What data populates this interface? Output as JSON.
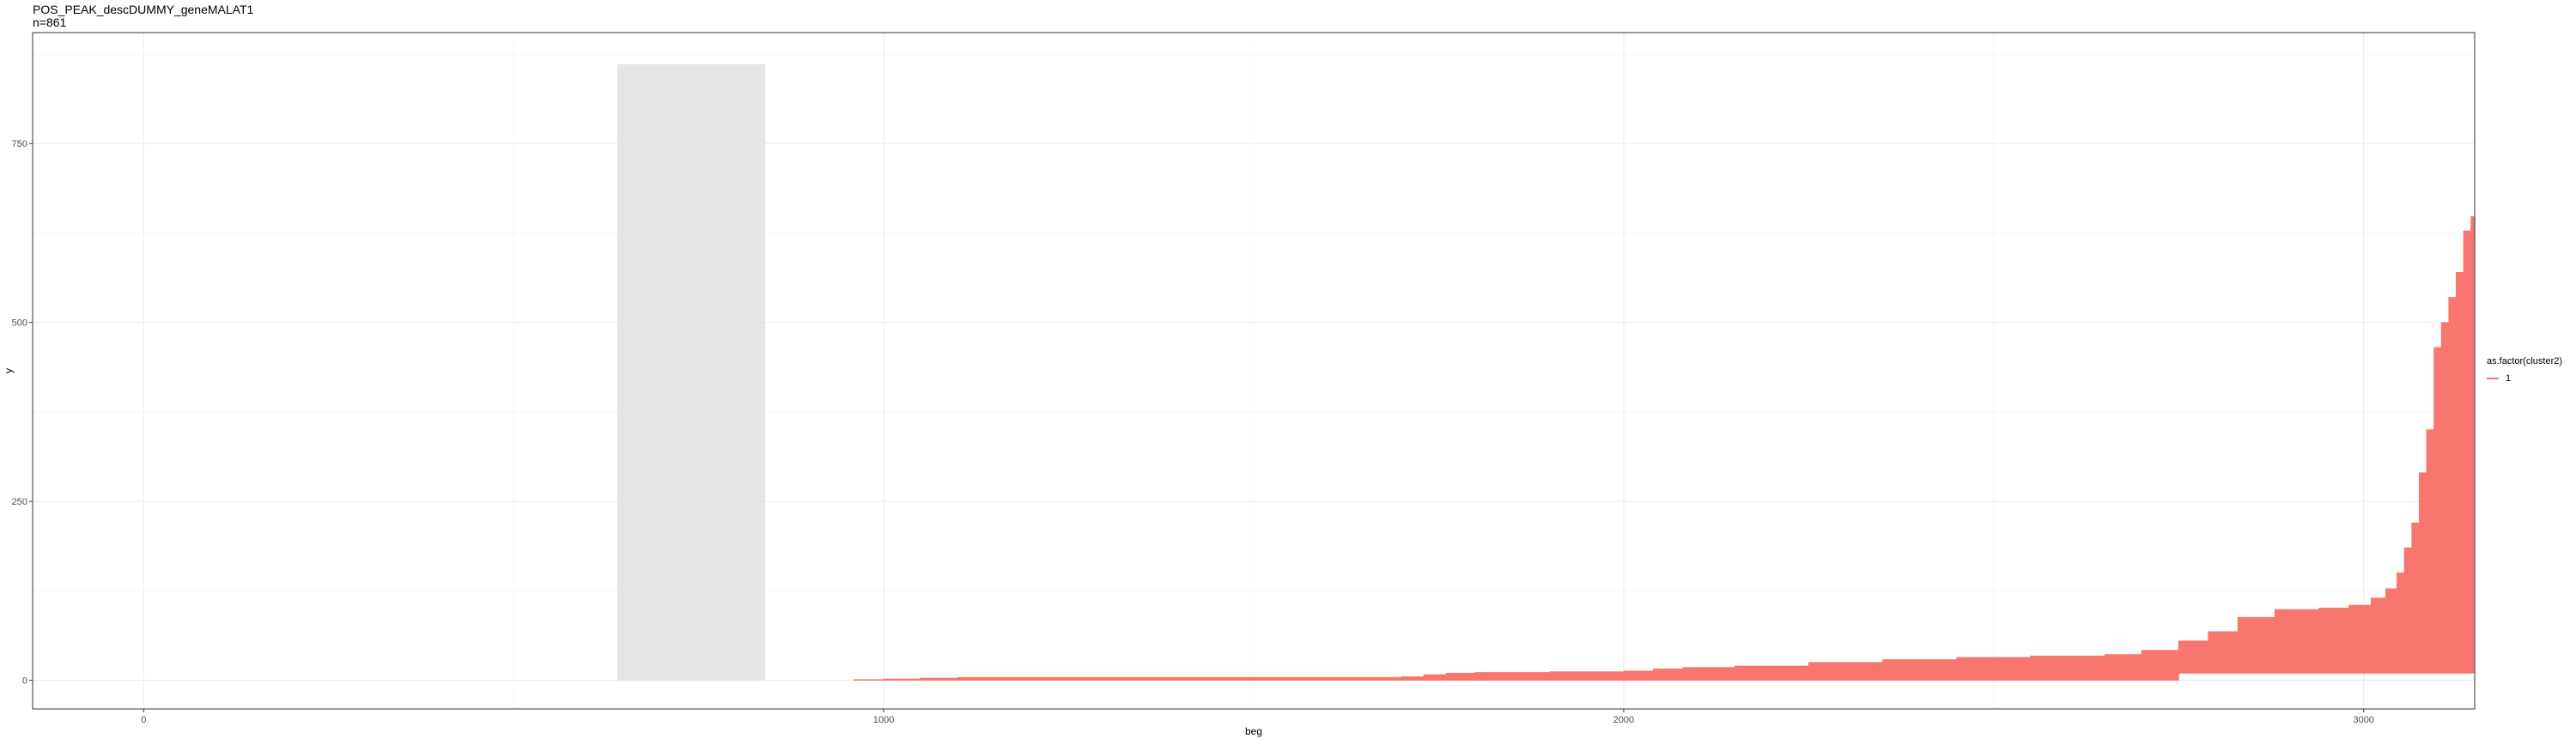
{
  "chart_data": {
    "type": "area",
    "title": "POS_PEAK_descDUMMY_geneMALAT1",
    "subtitle": "n=861",
    "xlabel": "beg",
    "ylabel": "y",
    "xlim": [
      -150,
      3150
    ],
    "ylim": [
      -40,
      905
    ],
    "x_ticks": [
      0,
      1000,
      2000,
      3000
    ],
    "y_ticks": [
      0,
      250,
      500,
      750
    ],
    "grid": true,
    "background": "#ffffff",
    "highlight_region": {
      "x": [
        640,
        840
      ],
      "y": [
        0,
        861
      ],
      "color": "#E5E5E5"
    },
    "legend": {
      "title": "as.factor(cluster2)",
      "position": "right",
      "entries": [
        {
          "label": "1",
          "color": "#F8766D"
        }
      ]
    },
    "series": [
      {
        "name": "1",
        "color": "#F8766D",
        "x": [
          960,
          1000,
          1050,
          1100,
          1250,
          1400,
          1550,
          1700,
          1730,
          1760,
          1800,
          1900,
          2000,
          2040,
          2080,
          2150,
          2250,
          2350,
          2450,
          2550,
          2650,
          2700,
          2750,
          2790,
          2830,
          2880,
          2940,
          2980,
          3010,
          3030,
          3045,
          3055,
          3065,
          3075,
          3085,
          3095,
          3105,
          3115,
          3125,
          3135,
          3145,
          3150
        ],
        "y_bottom": [
          0,
          0,
          0,
          0,
          0,
          0,
          0,
          0,
          0,
          0,
          0,
          0,
          0,
          0,
          0,
          0,
          0,
          0,
          0,
          0,
          0,
          0,
          10,
          10,
          10,
          10,
          10,
          10,
          10,
          10,
          10,
          10,
          10,
          10,
          10,
          10,
          10,
          10,
          10,
          10,
          10,
          10
        ],
        "y_top": [
          1,
          2,
          3,
          4,
          4,
          4,
          4,
          5,
          8,
          10,
          11,
          12,
          13,
          16,
          18,
          20,
          25,
          29,
          32,
          34,
          36,
          42,
          55,
          68,
          88,
          99,
          101,
          105,
          115,
          128,
          150,
          185,
          220,
          290,
          350,
          465,
          500,
          535,
          570,
          628,
          648,
          673
        ]
      }
    ]
  }
}
